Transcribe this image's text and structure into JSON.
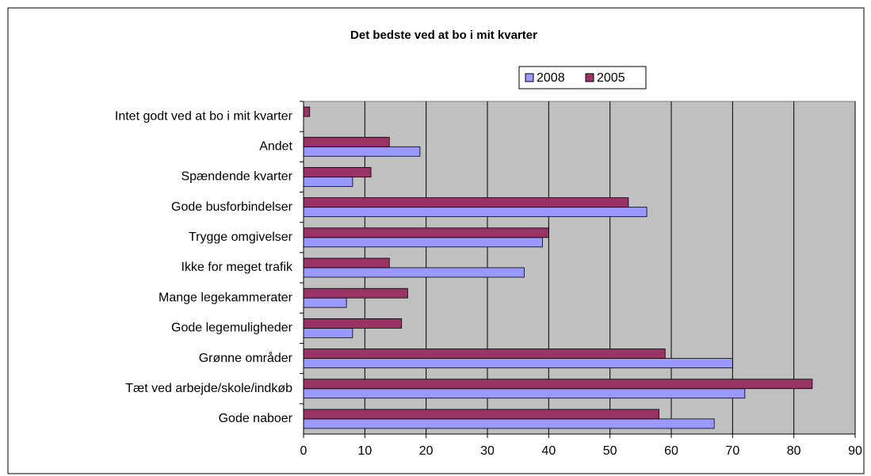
{
  "chart_data": {
    "type": "bar",
    "orientation": "horizontal",
    "title": "Det bedste ved at bo i mit kvarter",
    "categories": [
      "Intet godt ved at bo i mit kvarter",
      "Andet",
      "Spændende kvarter",
      "Gode busforbindelser",
      "Trygge omgivelser",
      "Ikke for meget trafik",
      "Mange legekammerater",
      "Gode legemuligheder",
      "Grønne områder",
      "Tæt ved arbejde/skole/indkøb",
      "Gode naboer"
    ],
    "series": [
      {
        "name": "2008",
        "color": "#9999ff",
        "values": [
          0,
          19,
          8,
          56,
          39,
          36,
          7,
          8,
          70,
          72,
          67
        ]
      },
      {
        "name": "2005",
        "color": "#993366",
        "values": [
          1,
          14,
          11,
          53,
          40,
          14,
          17,
          16,
          59,
          83,
          58
        ]
      }
    ],
    "xlim": [
      0,
      90
    ],
    "xticks": [
      0,
      10,
      20,
      30,
      40,
      50,
      60,
      70,
      80,
      90
    ],
    "grid": true,
    "legend": "top"
  }
}
